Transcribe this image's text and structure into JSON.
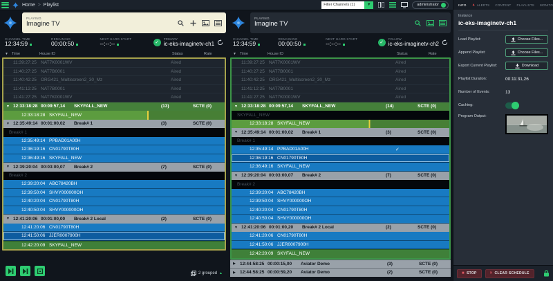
{
  "topbar": {
    "breadcrumb_home": "Home",
    "breadcrumb_sep": ">",
    "breadcrumb_current": "Playlist",
    "filter_value": "Filter Channels (1)",
    "user_label": "administrator"
  },
  "labels": {
    "playing": "PLAYING",
    "channel_time": "CHANNEL TIME",
    "remaining": "REMAINING",
    "next_hard_start": "NEXT HARD START",
    "col_time": "Time",
    "col_house": "House ID",
    "col_status": "Status",
    "col_rate": "Rate",
    "caret_down": "▼"
  },
  "colors": {
    "accent_green": "#2ecc71",
    "row_blue": "#187ac2",
    "group_green": "#45803a",
    "primary_border": "#a6a24b",
    "follow_border": "#3c9547"
  },
  "panels": [
    {
      "title": "Imagine TV",
      "channel_time": "12:34:59",
      "remaining": "00:00:50",
      "next_hard_start": "--:--:--",
      "role": "PRIMARY",
      "channel": "ic-eks-imaginetv-ch1",
      "footer_grouped": "2 grouped",
      "rows": [
        {
          "t": "aired",
          "time": "11:39:27:25",
          "house": "NAT7K0001WV",
          "status": "Aired"
        },
        {
          "t": "aired",
          "time": "11:40:27:25",
          "house": "NAT7B0001",
          "status": "Aired"
        },
        {
          "t": "aired",
          "time": "11:40:42:25",
          "house": "ORG421_Multiscreen2_30_Mz",
          "status": "Aired"
        },
        {
          "t": "aired",
          "time": "11:41:12:25",
          "house": "NAT7B0001",
          "status": "Aired"
        },
        {
          "t": "aired",
          "time": "11:41:27:25",
          "house": "NAT7K0001WV",
          "status": "Aired"
        },
        {
          "t": "group",
          "variant": "green",
          "time": "12:33:18:28",
          "dur": "00:09:57,14",
          "title": "SKYFALL_NEW",
          "count": "(13)",
          "scte": "SCTE (0)"
        },
        {
          "t": "active",
          "time": "12:33:18:28",
          "house": "SKYFALL_NEW",
          "progress": 65
        },
        {
          "t": "group",
          "variant": "gray",
          "time": "12:35:49:14",
          "dur": "00:01:00,02",
          "title": "Break# 1",
          "count": "(3)",
          "scte": "SCTE (0)"
        },
        {
          "t": "label",
          "title": "Break# 1"
        },
        {
          "t": "clip",
          "time": "12:35:49:14",
          "house": "PPBAD01A00H"
        },
        {
          "t": "clip",
          "time": "12:36:19:16",
          "house": "CN01790T80H"
        },
        {
          "t": "clip",
          "time": "12:36:49:16",
          "house": "SKYFALL_NEW"
        },
        {
          "t": "group",
          "variant": "gray",
          "time": "12:39:20:04",
          "dur": "00:03:00,07",
          "title": "Break# 2",
          "count": "(7)",
          "scte": "SCTE (0)"
        },
        {
          "t": "label",
          "title": "Break# 2"
        },
        {
          "t": "clip",
          "time": "12:39:20:04",
          "house": "ABC78420BH"
        },
        {
          "t": "clip",
          "time": "12:39:50:04",
          "house": "SHVY000000OH"
        },
        {
          "t": "clip",
          "time": "12:40:20:04",
          "house": "CN01790T80H"
        },
        {
          "t": "clip",
          "time": "12:40:50:04",
          "house": "SHVY000000OH"
        },
        {
          "t": "group",
          "variant": "gray",
          "time": "12:41:20:06",
          "dur": "00:01:00,00",
          "title": "Break# 2 Local",
          "count": "(2)",
          "scte": "SCTE (0)"
        },
        {
          "t": "clip",
          "time": "12:41:20:06",
          "house": "CN01790T80H"
        },
        {
          "t": "clip",
          "selected": true,
          "time": "12:41:50:06",
          "house": "JJER0007900H"
        },
        {
          "t": "primary",
          "time": "12:42:20:09",
          "house": "SKYFALL_NEW"
        }
      ],
      "rows_after": []
    },
    {
      "title": "Imagine TV",
      "channel_time": "12:34:59",
      "remaining": "00:00:50",
      "next_hard_start": "--:--:--",
      "role": "FOLLOW",
      "channel": "ic-eks-imaginetv-ch2",
      "footer_grouped": "",
      "rows": [
        {
          "t": "aired",
          "time": "11:39:27:25",
          "house": "NAT7K0001WV",
          "status": "Aired"
        },
        {
          "t": "aired",
          "time": "11:40:27:25",
          "house": "NAT7B0001",
          "status": "Aired"
        },
        {
          "t": "aired",
          "time": "11:40:42:25",
          "house": "ORG421_Multiscreen2_30_Mz",
          "status": "Aired"
        },
        {
          "t": "aired",
          "time": "11:41:12:25",
          "house": "NAT7B0001",
          "status": "Aired"
        },
        {
          "t": "aired",
          "time": "11:41:27:25",
          "house": "NAT7K0001WV",
          "status": "Aired"
        },
        {
          "t": "group",
          "variant": "green",
          "time": "12:33:18:28",
          "dur": "00:09:57,14",
          "title": "SKYFALL_NEW",
          "count": "(14)",
          "scte": "SCTE (0)"
        },
        {
          "t": "label",
          "title": "SKYFALL_NEW"
        },
        {
          "t": "active",
          "time": "12:33:18:28",
          "house": "SKYFALL_NEW",
          "progress": 63
        },
        {
          "t": "group",
          "variant": "gray",
          "time": "12:35:49:14",
          "dur": "00:01:00,02",
          "title": "Break# 1",
          "count": "(3)",
          "scte": "SCTE (0)"
        },
        {
          "t": "label",
          "title": "Break# 1"
        },
        {
          "t": "clip",
          "checked": true,
          "time": "12:35:49:14",
          "house": "PPBAD01A00H"
        },
        {
          "t": "clip",
          "selected": true,
          "time": "12:36:19:16",
          "house": "CN01790T80H"
        },
        {
          "t": "clip",
          "time": "12:36:49:16",
          "house": "SKYFALL_NEW"
        },
        {
          "t": "group",
          "variant": "gray",
          "time": "12:39:20:04",
          "dur": "00:03:00,07",
          "title": "Break# 2",
          "count": "(7)",
          "scte": "SCTE (0)"
        },
        {
          "t": "label",
          "title": "Break# 2"
        },
        {
          "t": "clip",
          "time": "12:39:20:04",
          "house": "ABC78420BH"
        },
        {
          "t": "clip",
          "time": "12:39:50:04",
          "house": "SHVY000000OH"
        },
        {
          "t": "clip",
          "time": "12:40:20:04",
          "house": "CN01790T80H"
        },
        {
          "t": "clip",
          "time": "12:40:50:04",
          "house": "SHVY000000OH"
        },
        {
          "t": "group",
          "variant": "gray",
          "time": "12:41:20:06",
          "dur": "00:01:00,20",
          "title": "Break# 2 Local",
          "count": "(2)",
          "scte": "SCTE (0)"
        },
        {
          "t": "clip",
          "time": "12:41:20:06",
          "house": "CN01790T80H"
        },
        {
          "t": "clip",
          "time": "12:41:50:06",
          "house": "JJER0007900H"
        },
        {
          "t": "primary",
          "time": "12:42:20:09",
          "house": "SKYFALL_NEW"
        }
      ],
      "rows_after": [
        {
          "t": "group_c",
          "variant": "gray",
          "time": "12:44:58:25",
          "dur": "00:00:15,00",
          "title": "Aviator Demo",
          "count": "(3)",
          "scte": "SCTE (0)"
        },
        {
          "t": "group_c",
          "variant": "gray",
          "time": "12:44:58:25",
          "dur": "00:00:59,20",
          "title": "Aviator Demo",
          "count": "(2)",
          "scte": "SCTE (0)"
        }
      ]
    }
  ],
  "sidebar": {
    "tabs": {
      "info": "INFO",
      "alerts": "ALERTS",
      "content": "CONTENT",
      "playlists": "PLAYLISTS",
      "monitoring": "MONITORING"
    },
    "instance_label": "Instance",
    "instance": "ic-eks-imaginetv-ch1",
    "fields": [
      {
        "label": "Load Playlist:",
        "button": "Choose Files..."
      },
      {
        "label": "Append Playlist:",
        "button": "Choose Files..."
      },
      {
        "label": "Export Current Playlist:",
        "button": "Download"
      },
      {
        "label": "Playlist Duration:",
        "value": "00:11:31,26"
      },
      {
        "label": "Number of Events:",
        "value": "13"
      },
      {
        "label": "Caching:",
        "toggle": true
      },
      {
        "label": "Program Output:",
        "thumbnail": true
      }
    ],
    "stop_label": "STOP",
    "clear_label": "CLEAR SCHEDULE"
  }
}
